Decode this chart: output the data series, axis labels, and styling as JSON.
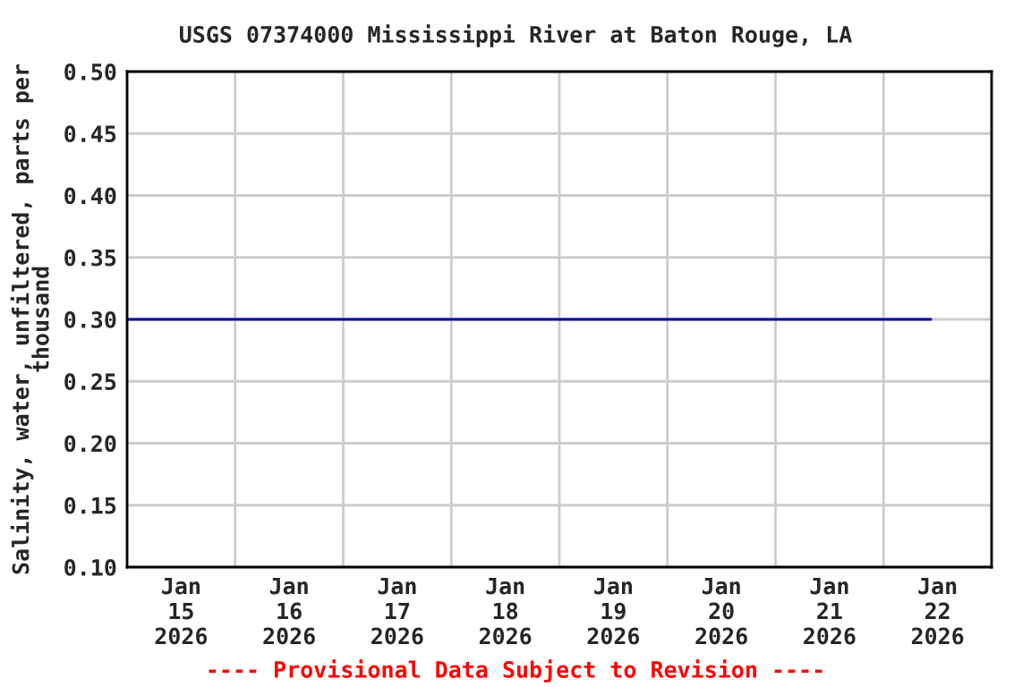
{
  "chart_data": {
    "type": "line",
    "title": "USGS 07374000 Mississippi River at Baton Rouge, LA",
    "ylabel": "Salinity, water, unfiltered, parts per\nthousand",
    "x": [
      "2026-01-15T00:00",
      "2026-01-22T10:30"
    ],
    "series": [
      {
        "color": "#0000a0",
        "values": [
          0.3,
          0.3
        ]
      }
    ],
    "xlim": [
      "2026-01-15T00:00",
      "2026-01-23T00:00"
    ],
    "xticks": [
      {
        "value": "2026-01-15T00:00",
        "label": null
      },
      {
        "value": "2026-01-15T12:00",
        "label": "Jan\n15\n2026"
      },
      {
        "value": "2026-01-16T00:00",
        "label": null
      },
      {
        "value": "2026-01-16T12:00",
        "label": "Jan\n16\n2026"
      },
      {
        "value": "2026-01-17T00:00",
        "label": null
      },
      {
        "value": "2026-01-17T12:00",
        "label": "Jan\n17\n2026"
      },
      {
        "value": "2026-01-18T00:00",
        "label": null
      },
      {
        "value": "2026-01-18T12:00",
        "label": "Jan\n18\n2026"
      },
      {
        "value": "2026-01-19T00:00",
        "label": null
      },
      {
        "value": "2026-01-19T12:00",
        "label": "Jan\n19\n2026"
      },
      {
        "value": "2026-01-20T00:00",
        "label": null
      },
      {
        "value": "2026-01-20T12:00",
        "label": "Jan\n20\n2026"
      },
      {
        "value": "2026-01-21T00:00",
        "label": null
      },
      {
        "value": "2026-01-21T12:00",
        "label": "Jan\n21\n2026"
      },
      {
        "value": "2026-01-22T00:00",
        "label": null
      },
      {
        "value": "2026-01-22T12:00",
        "label": "Jan\n22\n2026"
      },
      {
        "value": "2026-01-23T00:00",
        "label": null
      }
    ],
    "ylim": [
      0.1,
      0.5
    ],
    "yticks": [
      {
        "value": 0.1,
        "label": "0.10"
      },
      {
        "value": 0.15,
        "label": "0.15"
      },
      {
        "value": 0.2,
        "label": "0.20"
      },
      {
        "value": 0.25,
        "label": "0.25"
      },
      {
        "value": 0.3,
        "label": "0.30"
      },
      {
        "value": 0.35,
        "label": "0.35"
      },
      {
        "value": 0.4,
        "label": "0.40"
      },
      {
        "value": 0.45,
        "label": "0.45"
      },
      {
        "value": 0.5,
        "label": "0.50"
      }
    ],
    "grid": true,
    "annotations": [
      "---- Provisional Data Subject to Revision ----"
    ]
  }
}
